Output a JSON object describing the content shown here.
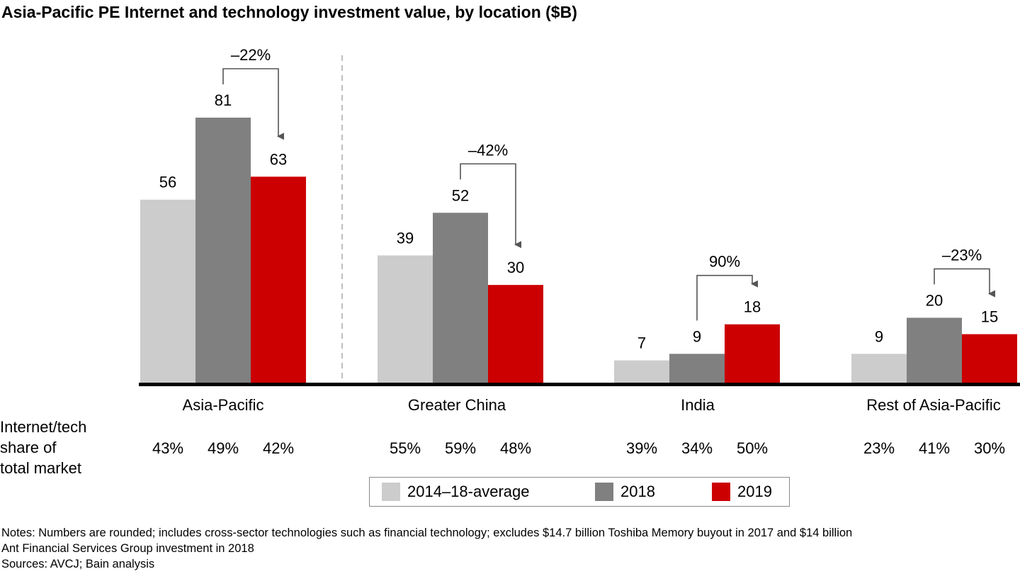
{
  "title": "Asia-Pacific PE Internet and technology investment value, by location ($B)",
  "colors": {
    "avg": "#cccccc",
    "y2018": "#808080",
    "y2019": "#cc0000",
    "axis": "#000000",
    "arrow": "#555555"
  },
  "chart_data": {
    "type": "bar",
    "title": "Asia-Pacific PE Internet and technology investment value, by location ($B)",
    "categories": [
      "Asia-Pacific",
      "Greater China",
      "India",
      "Rest of Asia-Pacific"
    ],
    "series": [
      {
        "name": "2014–18-average",
        "values": [
          56,
          39,
          7,
          9
        ]
      },
      {
        "name": "2018",
        "values": [
          81,
          52,
          9,
          20
        ]
      },
      {
        "name": "2019",
        "values": [
          63,
          30,
          18,
          15
        ]
      }
    ],
    "value_labels": [
      [
        "56",
        "81",
        "63"
      ],
      [
        "39",
        "52",
        "30"
      ],
      [
        "7",
        "9",
        "18"
      ],
      [
        "9",
        "20",
        "15"
      ]
    ],
    "changes": [
      "–22%",
      "–42%",
      "90%",
      "–23%"
    ],
    "ylim": [
      0,
      81
    ],
    "grid": false,
    "legend_position": "bottom-center"
  },
  "share": {
    "label_lines": [
      "Internet/tech",
      "share of",
      "total market"
    ],
    "values": [
      [
        "43%",
        "49%",
        "42%"
      ],
      [
        "55%",
        "59%",
        "48%"
      ],
      [
        "39%",
        "34%",
        "50%"
      ],
      [
        "23%",
        "41%",
        "30%"
      ]
    ]
  },
  "legend": [
    "2014–18-average",
    "2018",
    "2019"
  ],
  "notes": [
    "Notes: Numbers are rounded; includes cross-sector technologies such as financial technology; excludes $14.7 billion Toshiba Memory buyout in 2017 and $14 billion",
    "Ant Financial Services Group investment in 2018",
    "Sources: AVCJ; Bain analysis"
  ]
}
